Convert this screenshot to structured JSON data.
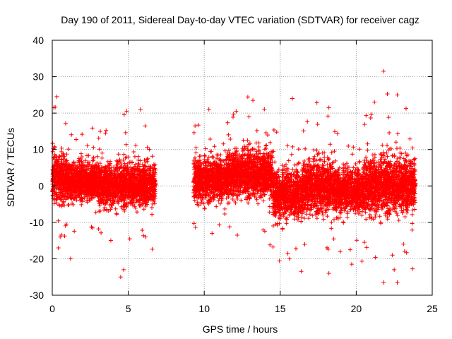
{
  "chart_data": {
    "type": "scatter",
    "title": "Day 190 of 2011, Sidereal Day-to-day VTEC variation (SDTVAR) for receiver cagz",
    "xlabel": "GPS time / hours",
    "ylabel": "SDTVAR / TECUs",
    "xlim": [
      0,
      25
    ],
    "ylim": [
      -30,
      40
    ],
    "xticks": [
      0,
      5,
      10,
      15,
      20,
      25
    ],
    "yticks": [
      -30,
      -20,
      -10,
      0,
      10,
      20,
      30,
      40
    ],
    "grid": true,
    "marker": "+",
    "marker_color": "#ff0000",
    "data_gap_hours": [
      6.8,
      9.3
    ],
    "segments": [
      {
        "x_start": 0.0,
        "x_end": 1.0,
        "center": 2.5,
        "spread": 5.5
      },
      {
        "x_start": 1.0,
        "x_end": 3.0,
        "center": 1.5,
        "spread": 4.5
      },
      {
        "x_start": 3.0,
        "x_end": 6.8,
        "center": 0.5,
        "spread": 5.0
      },
      {
        "x_start": 9.3,
        "x_end": 11.5,
        "center": 2.0,
        "spread": 5.0
      },
      {
        "x_start": 11.5,
        "x_end": 14.5,
        "center": 3.5,
        "spread": 5.5
      },
      {
        "x_start": 14.5,
        "x_end": 16.5,
        "center": -2.0,
        "spread": 6.0
      },
      {
        "x_start": 16.5,
        "x_end": 18.5,
        "center": 0.0,
        "spread": 6.0
      },
      {
        "x_start": 18.5,
        "x_end": 20.5,
        "center": -1.0,
        "spread": 5.5
      },
      {
        "x_start": 20.5,
        "x_end": 23.9,
        "center": 0.5,
        "spread": 6.5
      }
    ],
    "outliers": [
      {
        "x": 0.3,
        "y": 24.5
      },
      {
        "x": 0.1,
        "y": 21.5
      },
      {
        "x": 0.4,
        "y": -17.0
      },
      {
        "x": 1.2,
        "y": -20.0
      },
      {
        "x": 4.5,
        "y": -25.0
      },
      {
        "x": 4.7,
        "y": -23.0
      },
      {
        "x": 4.9,
        "y": 20.5
      },
      {
        "x": 5.8,
        "y": 21.0
      },
      {
        "x": 13.2,
        "y": 23.5
      },
      {
        "x": 12.1,
        "y": 20.5
      },
      {
        "x": 15.8,
        "y": 24.0
      },
      {
        "x": 15.5,
        "y": -18.5
      },
      {
        "x": 18.2,
        "y": 21.5
      },
      {
        "x": 18.2,
        "y": -24.0
      },
      {
        "x": 19.7,
        "y": -21.5
      },
      {
        "x": 21.8,
        "y": 31.5
      },
      {
        "x": 22.7,
        "y": 25.0
      },
      {
        "x": 21.8,
        "y": -26.5
      },
      {
        "x": 22.7,
        "y": -26.5
      },
      {
        "x": 22.5,
        "y": -23.0
      },
      {
        "x": 21.2,
        "y": 23.0
      }
    ]
  }
}
